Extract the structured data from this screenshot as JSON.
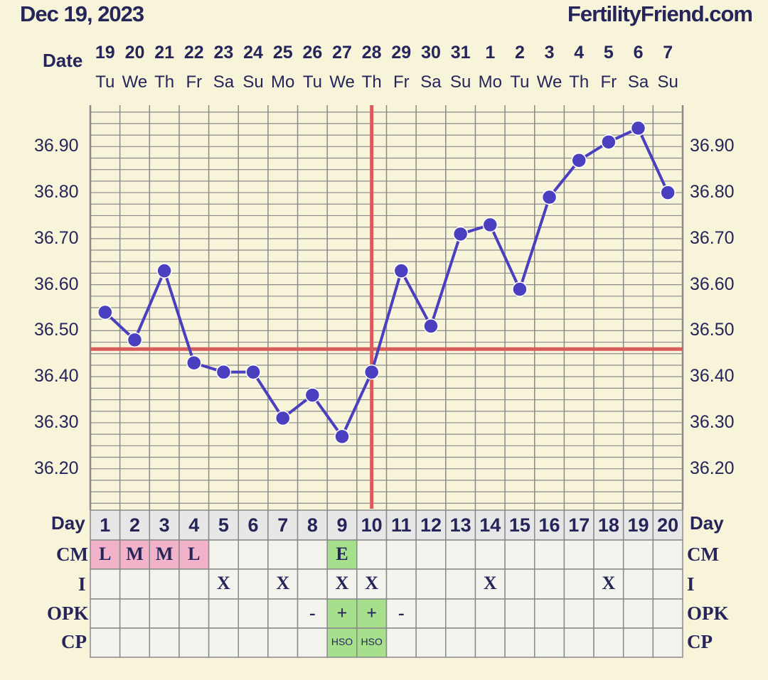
{
  "header": {
    "date": "Dec 19, 2023",
    "site": "FertilityFriend.com"
  },
  "labels": {
    "date": "Date",
    "day": "Day",
    "cm": "CM",
    "i": "I",
    "opk": "OPK",
    "cp": "CP"
  },
  "colors": {
    "line": "#4a3fbf",
    "coverline": "#d95c5c",
    "ovulation_line": "#d95c5c",
    "grid": "#8a8a8a",
    "menses_cell": "#f2b2c9",
    "fertile_cell": "#a6e08c",
    "text": "#25255a"
  },
  "columns": [
    {
      "date": "19",
      "dow": "Tu",
      "day": "1",
      "cm": "L",
      "i": "",
      "opk": "",
      "cp": ""
    },
    {
      "date": "20",
      "dow": "We",
      "day": "2",
      "cm": "M",
      "i": "",
      "opk": "",
      "cp": ""
    },
    {
      "date": "21",
      "dow": "Th",
      "day": "3",
      "cm": "M",
      "i": "",
      "opk": "",
      "cp": ""
    },
    {
      "date": "22",
      "dow": "Fr",
      "day": "4",
      "cm": "L",
      "i": "",
      "opk": "",
      "cp": ""
    },
    {
      "date": "23",
      "dow": "Sa",
      "day": "5",
      "cm": "",
      "i": "X",
      "opk": "",
      "cp": ""
    },
    {
      "date": "24",
      "dow": "Su",
      "day": "6",
      "cm": "",
      "i": "",
      "opk": "",
      "cp": ""
    },
    {
      "date": "25",
      "dow": "Mo",
      "day": "7",
      "cm": "",
      "i": "X",
      "opk": "",
      "cp": ""
    },
    {
      "date": "26",
      "dow": "Tu",
      "day": "8",
      "cm": "",
      "i": "",
      "opk": "-",
      "cp": ""
    },
    {
      "date": "27",
      "dow": "We",
      "day": "9",
      "cm": "E",
      "i": "X",
      "opk": "+",
      "cp": "HSO"
    },
    {
      "date": "28",
      "dow": "Th",
      "day": "10",
      "cm": "",
      "i": "X",
      "opk": "+",
      "cp": "HSO"
    },
    {
      "date": "29",
      "dow": "Fr",
      "day": "11",
      "cm": "",
      "i": "",
      "opk": "-",
      "cp": ""
    },
    {
      "date": "30",
      "dow": "Sa",
      "day": "12",
      "cm": "",
      "i": "",
      "opk": "",
      "cp": ""
    },
    {
      "date": "31",
      "dow": "Su",
      "day": "13",
      "cm": "",
      "i": "",
      "opk": "",
      "cp": ""
    },
    {
      "date": "1",
      "dow": "Mo",
      "day": "14",
      "cm": "",
      "i": "X",
      "opk": "",
      "cp": ""
    },
    {
      "date": "2",
      "dow": "Tu",
      "day": "15",
      "cm": "",
      "i": "",
      "opk": "",
      "cp": ""
    },
    {
      "date": "3",
      "dow": "We",
      "day": "16",
      "cm": "",
      "i": "",
      "opk": "",
      "cp": ""
    },
    {
      "date": "4",
      "dow": "Th",
      "day": "17",
      "cm": "",
      "i": "",
      "opk": "",
      "cp": ""
    },
    {
      "date": "5",
      "dow": "Fr",
      "day": "18",
      "cm": "",
      "i": "X",
      "opk": "",
      "cp": ""
    },
    {
      "date": "6",
      "dow": "Sa",
      "day": "19",
      "cm": "",
      "i": "",
      "opk": "",
      "cp": ""
    },
    {
      "date": "7",
      "dow": "Su",
      "day": "20",
      "cm": "",
      "i": "",
      "opk": "",
      "cp": ""
    }
  ],
  "cell_highlights": {
    "cm": {
      "L": "menses",
      "M": "menses",
      "E": "fertile"
    },
    "opk": {
      "+": "fertile"
    },
    "cp": {
      "HSO": "fertile"
    }
  },
  "chart_data": {
    "type": "line",
    "x": [
      "1",
      "2",
      "3",
      "4",
      "5",
      "6",
      "7",
      "8",
      "9",
      "10",
      "11",
      "12",
      "13",
      "14",
      "15",
      "16",
      "17",
      "18",
      "19",
      "20"
    ],
    "series": [
      {
        "values": [
          36.54,
          36.48,
          36.63,
          36.43,
          36.41,
          36.41,
          36.31,
          36.36,
          36.27,
          36.41,
          36.63,
          36.51,
          36.71,
          36.73,
          36.59,
          36.79,
          36.87,
          36.91,
          36.94,
          36.8
        ]
      }
    ],
    "ylim": [
      36.11,
      36.99
    ],
    "yticks": [
      "36.20",
      "36.30",
      "36.40",
      "36.50",
      "36.60",
      "36.70",
      "36.80",
      "36.90"
    ],
    "coverline": 36.46,
    "ovulation_day": "10",
    "grid": true
  }
}
